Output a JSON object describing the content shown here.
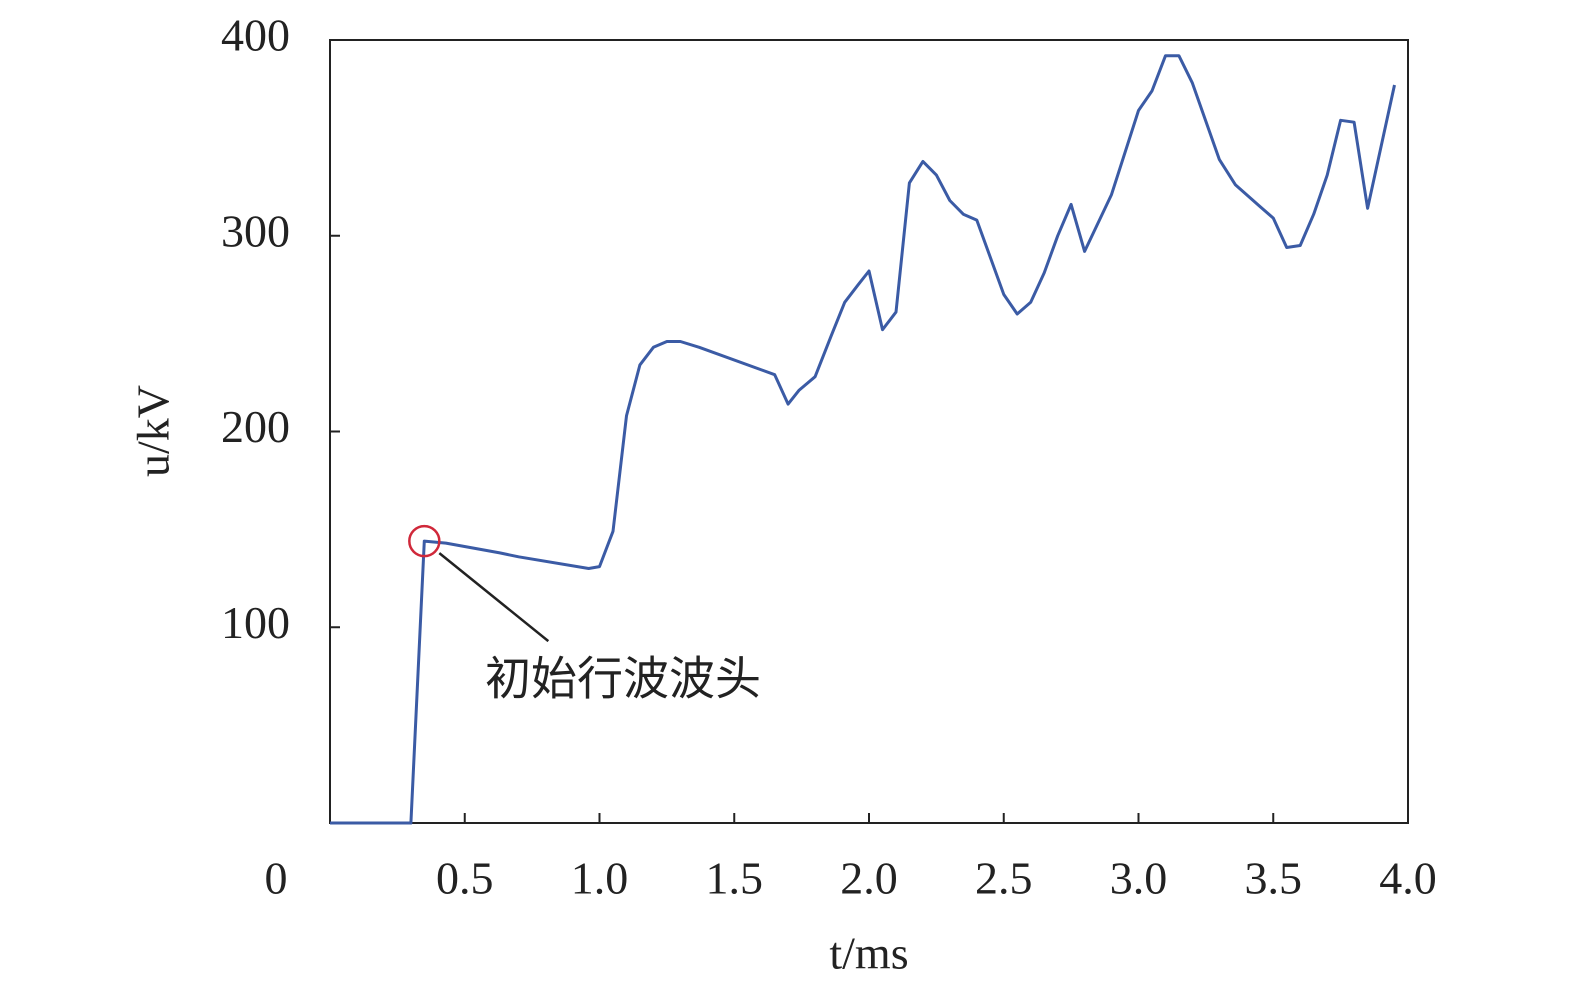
{
  "chart_data": {
    "type": "line",
    "x_label": "t/ms",
    "y_label": "u/kV",
    "annotation": "初始行波波头",
    "annotation_index": 2,
    "xlim": [
      0,
      4
    ],
    "ylim": [
      0,
      400
    ],
    "xticks": [
      0,
      0.5,
      {
        "value": 1,
        "label": "1.0"
      },
      1.5,
      {
        "value": 2,
        "label": "2.0"
      },
      2.5,
      {
        "value": 3,
        "label": "3.0"
      },
      3.5,
      {
        "value": 4,
        "label": "4.0"
      }
    ],
    "yticks": [
      100,
      200,
      300,
      400
    ],
    "series": [
      {
        "color": "#3b5ba5",
        "x": [
          0,
          0.3,
          0.35,
          0.43,
          0.63,
          0.7,
          0.96,
          1.0,
          1.05,
          1.1,
          1.15,
          1.2,
          1.25,
          1.3,
          1.37,
          1.65,
          1.7,
          1.74,
          1.8,
          1.86,
          1.91,
          1.96,
          2.0,
          2.05,
          2.1,
          2.15,
          2.2,
          2.25,
          2.3,
          2.35,
          2.4,
          2.5,
          2.55,
          2.6,
          2.65,
          2.7,
          2.75,
          2.8,
          2.9,
          3.0,
          3.05,
          3.1,
          3.15,
          3.2,
          3.3,
          3.36,
          3.45,
          3.5,
          3.55,
          3.6,
          3.65,
          3.7,
          3.75,
          3.8,
          3.85,
          3.95
        ],
        "values": [
          0,
          0,
          144,
          143,
          138,
          136,
          130,
          131,
          149,
          208,
          234,
          243,
          246,
          246,
          243,
          229,
          214,
          221,
          228,
          249,
          266,
          275,
          282,
          252,
          261,
          327,
          338,
          331,
          318,
          311,
          308,
          270,
          260,
          266,
          281,
          300,
          316,
          292,
          321,
          364,
          374,
          392,
          392,
          378,
          339,
          326,
          315,
          309,
          294,
          295,
          311,
          331,
          359,
          358,
          314,
          377
        ]
      }
    ]
  }
}
